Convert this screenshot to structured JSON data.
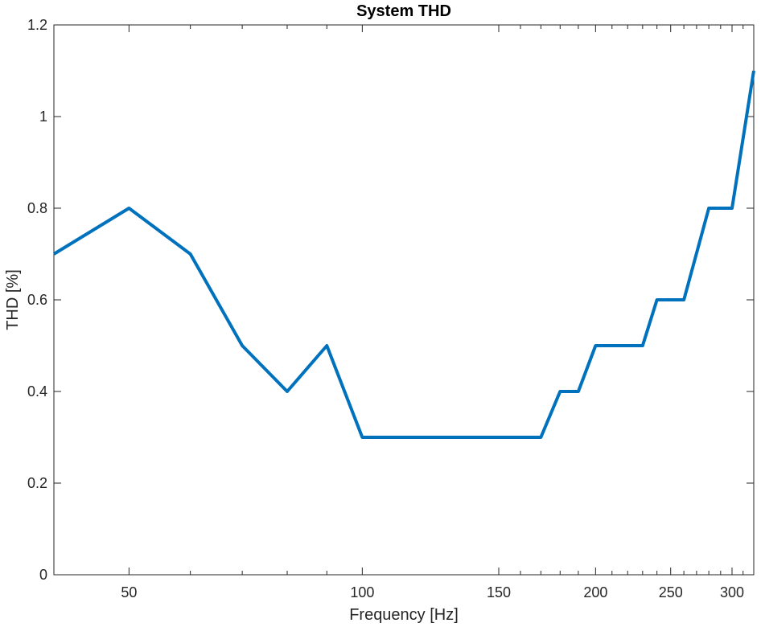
{
  "chart_data": {
    "type": "line",
    "title": "System THD",
    "xlabel": "Frequency [Hz]",
    "ylabel": "THD [%]",
    "x_scale": "log",
    "xlim": [
      40,
      320
    ],
    "ylim": [
      0,
      1.2
    ],
    "grid": false,
    "legend": "none",
    "x_ticks": [
      50,
      100,
      150,
      200,
      250,
      300
    ],
    "x_tick_labels": [
      "50",
      "100",
      "150",
      "200",
      "250",
      "300"
    ],
    "x_minor_ticks": [
      60,
      70,
      80,
      90,
      160,
      170,
      180,
      190,
      210,
      220,
      230,
      240,
      260,
      270,
      280,
      290,
      310,
      320
    ],
    "y_ticks": [
      0,
      0.2,
      0.4,
      0.6,
      0.8,
      1,
      1.2
    ],
    "y_tick_labels": [
      "0",
      "0.2",
      "0.4",
      "0.6",
      "0.8",
      "1",
      "1.2"
    ],
    "series_color": "#0072BD",
    "series": [
      {
        "x": [
          40,
          50,
          60,
          70,
          80,
          90,
          100,
          170,
          180,
          190,
          200,
          230,
          240,
          260,
          280,
          300,
          320
        ],
        "y": [
          0.7,
          0.8,
          0.7,
          0.5,
          0.4,
          0.5,
          0.3,
          0.3,
          0.4,
          0.4,
          0.5,
          0.5,
          0.6,
          0.6,
          0.8,
          0.8,
          1.1
        ]
      }
    ]
  }
}
